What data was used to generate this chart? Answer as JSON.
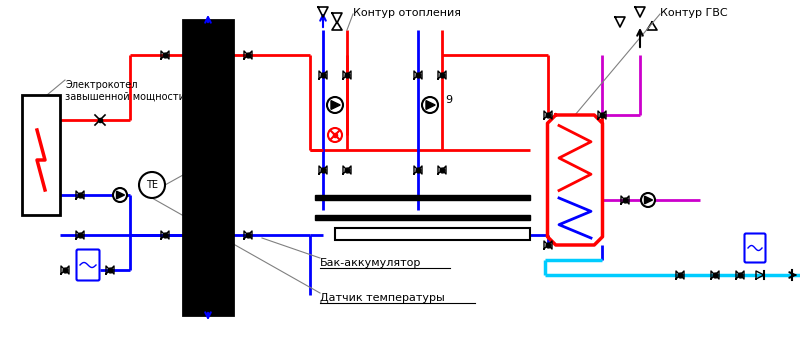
{
  "bg_color": "#ffffff",
  "fig_width": 8.0,
  "fig_height": 3.42,
  "dpi": 100,
  "labels": {
    "electroboiler": "Электрокотел\nзавышенной мощности",
    "bak": "Бак-аккумулятор",
    "sensor": "Датчик температуры",
    "heating": "Контур отопления",
    "gvs": "Контур ГВС"
  },
  "colors": {
    "red": "#ff0000",
    "blue": "#0000ff",
    "cyan": "#00ccff",
    "magenta": "#cc00cc",
    "black": "#000000",
    "gray": "#888888",
    "white": "#ffffff"
  }
}
